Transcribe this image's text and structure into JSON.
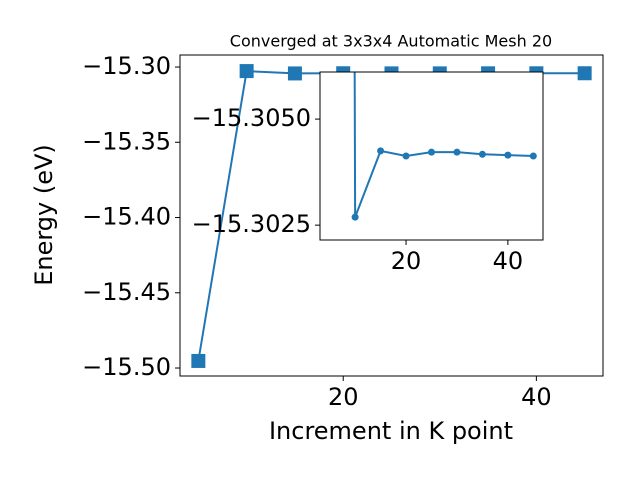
{
  "chart_data": {
    "type": "line",
    "title": "Converged at 3x3x4 Automatic Mesh 20",
    "xlabel": "Increment in K point",
    "ylabel": "Energy (eV)",
    "x": [
      5,
      10,
      15,
      20,
      25,
      30,
      35,
      40,
      45
    ],
    "series": [
      {
        "name": null,
        "color": "#1f77b4",
        "values": [
          -15.4953,
          -15.30269,
          -15.30425,
          -15.30413,
          -15.30422,
          -15.30422,
          -15.30417,
          -15.30415,
          -15.30413
        ]
      }
    ],
    "xlim": [
      3.1,
      46.9
    ],
    "ylim": [
      -15.5053,
      -15.292
    ],
    "xticks": [
      20,
      40
    ],
    "yticks": [
      {
        "value": -15.5,
        "label": "−15.50"
      },
      {
        "value": -15.45,
        "label": "−15.45"
      },
      {
        "value": -15.4,
        "label": "−15.40"
      },
      {
        "value": -15.35,
        "label": "−15.35"
      },
      {
        "value": -15.3,
        "label": "−15.30"
      }
    ],
    "marker": "square",
    "inset": {
      "xlim": [
        3.1,
        46.9
      ],
      "ylim": [
        -15.30611,
        -15.30215
      ],
      "yinverted": true,
      "xticks": [
        20,
        40
      ],
      "yticks": [
        {
          "value": -15.305,
          "label": "−15.3050"
        },
        {
          "value": -15.3025,
          "label": "−15.3025"
        }
      ],
      "marker": "circle"
    }
  }
}
